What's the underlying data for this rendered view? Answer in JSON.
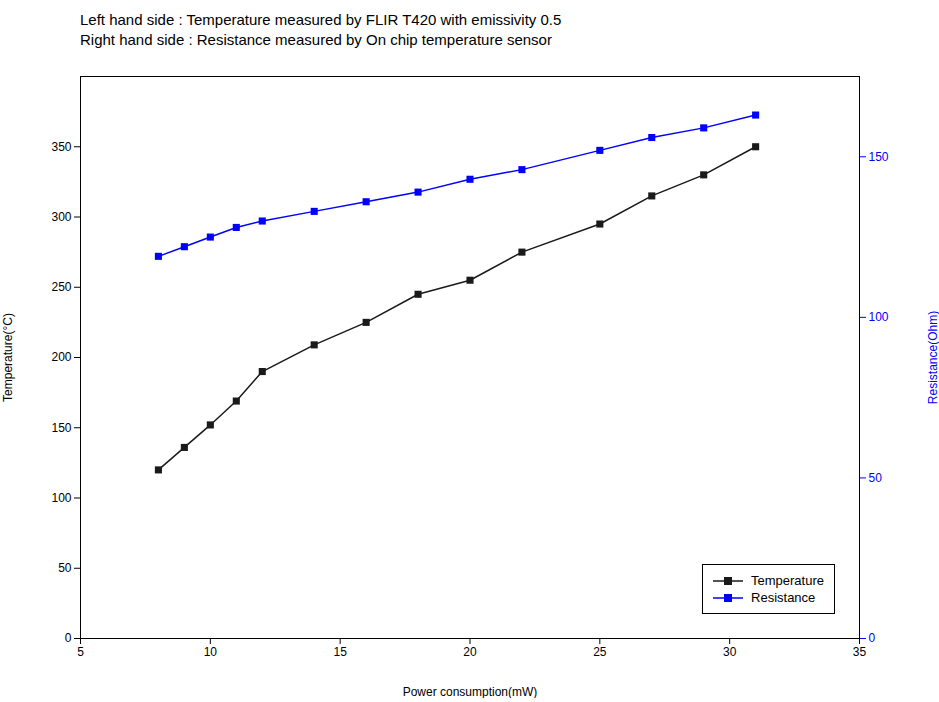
{
  "chart_data": {
    "type": "line",
    "title": "Left hand side : Temperature measured by FLIR T420 with emissivity 0.5",
    "subtitle": "Right hand side : Resistance measured by On chip temperature sensor",
    "xlabel": "Power consumption(mW)",
    "ylabel": "Temperature(°C)",
    "y2label": "Resistance(Ohm)",
    "x": [
      8,
      9,
      10,
      11,
      12,
      14,
      16,
      18,
      20,
      22,
      25,
      27,
      29,
      31
    ],
    "series": [
      {
        "name": "Temperature",
        "color": "#1a1a1a",
        "marker": "square",
        "line_style": "solid",
        "values": [
          120,
          136,
          152,
          169,
          190,
          209,
          225,
          245,
          255,
          275,
          295,
          315,
          330,
          350
        ]
      },
      {
        "name": "Resistance",
        "color": "#0000ff",
        "marker": "square",
        "line_style": "solid",
        "axis": "y2",
        "values": [
          119,
          122,
          125,
          128,
          130,
          133,
          136,
          139,
          143,
          146,
          152,
          156,
          159,
          163
        ]
      }
    ],
    "xlim": [
      5,
      35
    ],
    "ylim": [
      0,
      400
    ],
    "y2lim": [
      0,
      175
    ],
    "xticks": [
      5,
      10,
      15,
      20,
      25,
      30,
      35
    ],
    "yticks": [
      0,
      50,
      100,
      150,
      200,
      250,
      300,
      350
    ],
    "y2ticks": [
      0,
      50,
      100,
      150
    ],
    "grid": false,
    "legend": "lower right"
  }
}
